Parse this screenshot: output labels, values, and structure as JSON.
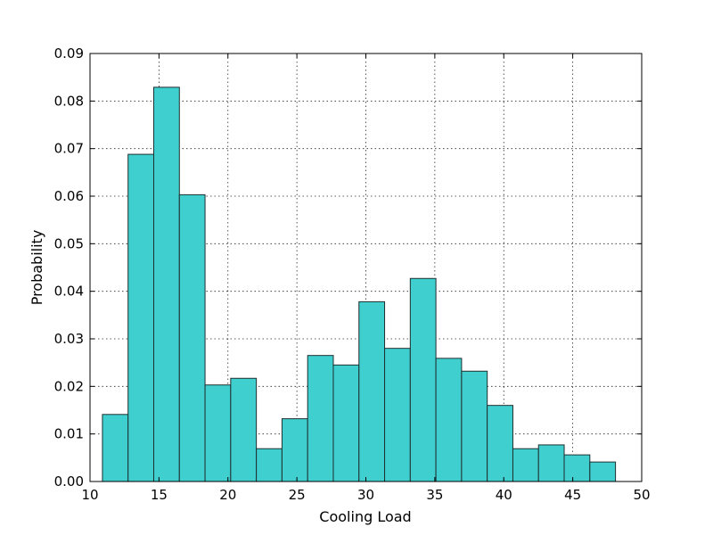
{
  "chart_data": {
    "type": "bar",
    "subtype": "histogram",
    "title": "",
    "xlabel": "Cooling Load",
    "ylabel": "Probability",
    "xlim": [
      10,
      50
    ],
    "ylim": [
      0,
      0.09
    ],
    "grid": true,
    "bar_color": "#3fcfcf",
    "edge_color": "#1f2f2f",
    "xticks": [
      10,
      15,
      20,
      25,
      30,
      35,
      40,
      45,
      50
    ],
    "xtick_labels": [
      "10",
      "15",
      "20",
      "25",
      "30",
      "35",
      "40",
      "45",
      "50"
    ],
    "yticks": [
      0,
      0.01,
      0.02,
      0.03,
      0.04,
      0.05,
      0.06,
      0.07,
      0.08,
      0.09
    ],
    "ytick_labels": [
      "0.00",
      "0.01",
      "0.02",
      "0.03",
      "0.04",
      "0.05",
      "0.06",
      "0.07",
      "0.08",
      "0.09"
    ],
    "bins": [
      {
        "x0": 10.9,
        "x1": 12.76,
        "value": 0.0141
      },
      {
        "x0": 12.76,
        "x1": 14.62,
        "value": 0.0688
      },
      {
        "x0": 14.62,
        "x1": 16.48,
        "value": 0.0829
      },
      {
        "x0": 16.48,
        "x1": 18.34,
        "value": 0.0603
      },
      {
        "x0": 18.34,
        "x1": 20.2,
        "value": 0.0203
      },
      {
        "x0": 20.2,
        "x1": 22.06,
        "value": 0.0217
      },
      {
        "x0": 22.06,
        "x1": 23.92,
        "value": 0.0069
      },
      {
        "x0": 23.92,
        "x1": 25.78,
        "value": 0.0132
      },
      {
        "x0": 25.78,
        "x1": 27.64,
        "value": 0.0265
      },
      {
        "x0": 27.64,
        "x1": 29.5,
        "value": 0.0245
      },
      {
        "x0": 29.5,
        "x1": 31.36,
        "value": 0.0378
      },
      {
        "x0": 31.36,
        "x1": 33.22,
        "value": 0.028
      },
      {
        "x0": 33.22,
        "x1": 35.08,
        "value": 0.0427
      },
      {
        "x0": 35.08,
        "x1": 36.94,
        "value": 0.0259
      },
      {
        "x0": 36.94,
        "x1": 38.8,
        "value": 0.0232
      },
      {
        "x0": 38.8,
        "x1": 40.66,
        "value": 0.016
      },
      {
        "x0": 40.66,
        "x1": 42.52,
        "value": 0.0069
      },
      {
        "x0": 42.52,
        "x1": 44.38,
        "value": 0.0077
      },
      {
        "x0": 44.38,
        "x1": 46.24,
        "value": 0.0056
      },
      {
        "x0": 46.24,
        "x1": 48.1,
        "value": 0.0041
      }
    ]
  }
}
